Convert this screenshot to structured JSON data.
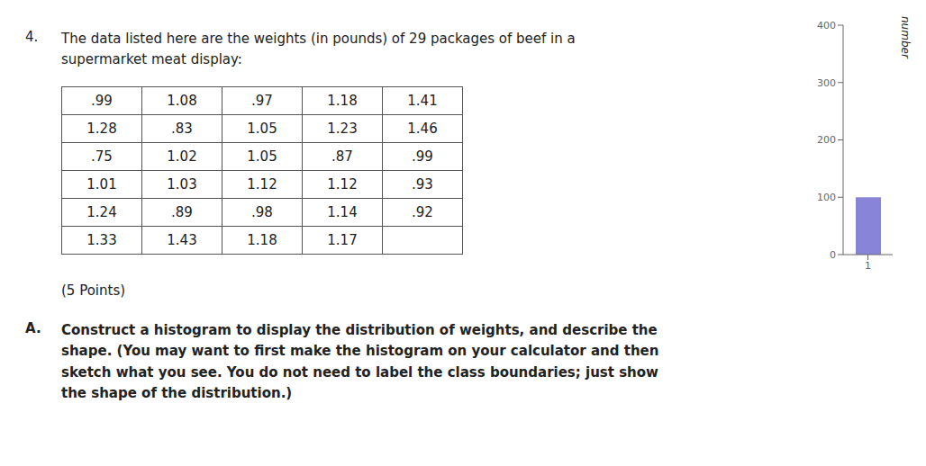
{
  "chart_data": {
    "type": "bar",
    "annotations": [
      "4.",
      "The data listed here are the weights (in pounds) of 29 packages of beef in a\nsupermarket meat display:",
      "(5 Points)",
      "A.",
      "Construct a histogram to display the distribution of weights, and describe the\nshape. (You may want to first make the histogram on your calculator and then\nsketch what you see. You do not need to label the class boundaries; just show\nthe shape of the distribution.)"
    ],
    "table": [
      [
        ".99",
        "1.08",
        ".97",
        "1.18",
        "1.41"
      ],
      [
        "1.28",
        ".83",
        "1.05",
        "1.23",
        "1.46"
      ],
      [
        ".75",
        "1.02",
        "1.05",
        ".87",
        ".99"
      ],
      [
        "1.01",
        "1.03",
        "1.12",
        "1.12",
        ".93"
      ],
      [
        "1.24",
        ".89",
        ".98",
        "1.14",
        ".92"
      ],
      [
        "1.33",
        "1.43",
        "1.18",
        "1.17",
        null
      ]
    ],
    "categories": [
      "1"
    ],
    "values": [
      100
    ],
    "color": "#8884d8",
    "ylim": [
      0,
      400
    ],
    "yticks": [
      0,
      100,
      200,
      300,
      400
    ],
    "ylabel": "number",
    "grid": false
  }
}
